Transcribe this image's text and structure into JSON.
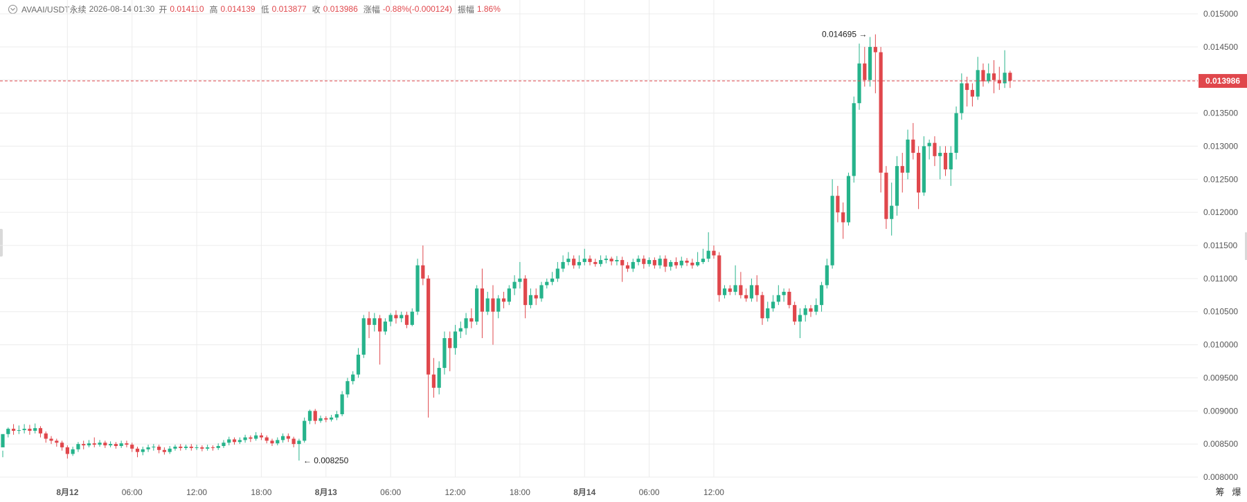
{
  "header": {
    "symbol": "AVAAI/USDT永续",
    "datetime": "2026-08-14 01:30",
    "open_label": "开",
    "open": "0.014110",
    "high_label": "高",
    "high": "0.014139",
    "low_label": "低",
    "low": "0.013877",
    "close_label": "收",
    "close": "0.013986",
    "change_label": "涨幅",
    "change": "-0.88%(-0.000124)",
    "amplitude_label": "振幅",
    "amplitude": "1.86%"
  },
  "colors": {
    "up": "#26b38b",
    "down": "#e0474c",
    "grid": "#ececec",
    "text": "#555555"
  },
  "chart_data": {
    "type": "candlestick",
    "ylim": [
      0.008,
      0.015
    ],
    "y_ticks": [
      "0.008000",
      "0.008500",
      "0.009000",
      "0.009500",
      "0.010000",
      "0.010500",
      "0.011000",
      "0.011500",
      "0.012000",
      "0.012500",
      "0.013000",
      "0.013500",
      "0.014000",
      "0.014500",
      "0.015000"
    ],
    "x_ticks": [
      {
        "label": "8月12",
        "hour": 6,
        "bold": true
      },
      {
        "label": "06:00",
        "hour": 12,
        "bold": false
      },
      {
        "label": "12:00",
        "hour": 18,
        "bold": false
      },
      {
        "label": "18:00",
        "hour": 24,
        "bold": false
      },
      {
        "label": "8月13",
        "hour": 30,
        "bold": true
      },
      {
        "label": "06:00",
        "hour": 36,
        "bold": false
      },
      {
        "label": "12:00",
        "hour": 42,
        "bold": false
      },
      {
        "label": "18:00",
        "hour": 48,
        "bold": false
      },
      {
        "label": "8月14",
        "hour": 54,
        "bold": true
      },
      {
        "label": "06:00",
        "hour": 60,
        "bold": false
      },
      {
        "label": "12:00",
        "hour": 66,
        "bold": false
      }
    ],
    "current_price": "0.013986",
    "max_label": "0.014695",
    "min_label": "0.008250",
    "corner_labels": [
      "筹",
      "爆"
    ],
    "candles": [
      [
        0.00845,
        0.00865,
        0.0084,
        0.0083
      ],
      [
        0.00865,
        0.00873,
        0.00875,
        0.0086
      ],
      [
        0.00873,
        0.0087,
        0.0088,
        0.00864
      ],
      [
        0.0087,
        0.00871,
        0.00878,
        0.00865
      ],
      [
        0.00871,
        0.00873,
        0.0088,
        0.00866
      ],
      [
        0.00873,
        0.0087,
        0.00879,
        0.00864
      ],
      [
        0.0087,
        0.00874,
        0.00881,
        0.00866
      ],
      [
        0.00874,
        0.00866,
        0.00877,
        0.0086
      ],
      [
        0.00866,
        0.00858,
        0.00869,
        0.00852
      ],
      [
        0.00858,
        0.00855,
        0.00862,
        0.0085
      ],
      [
        0.00855,
        0.00852,
        0.00858,
        0.00846
      ],
      [
        0.00852,
        0.00845,
        0.00855,
        0.0084
      ],
      [
        0.00845,
        0.00835,
        0.00848,
        0.00828
      ],
      [
        0.00835,
        0.00842,
        0.00846,
        0.00832
      ],
      [
        0.00842,
        0.0085,
        0.00853,
        0.00838
      ],
      [
        0.0085,
        0.00848,
        0.00855,
        0.00842
      ],
      [
        0.00848,
        0.00851,
        0.00856,
        0.00845
      ],
      [
        0.00851,
        0.00849,
        0.0086,
        0.00845
      ],
      [
        0.00849,
        0.00852,
        0.00856,
        0.00846
      ],
      [
        0.00852,
        0.00848,
        0.00855,
        0.00844
      ],
      [
        0.00848,
        0.0085,
        0.00854,
        0.00845
      ],
      [
        0.0085,
        0.00847,
        0.00853,
        0.00843
      ],
      [
        0.00847,
        0.00851,
        0.00855,
        0.00844
      ],
      [
        0.00851,
        0.00849,
        0.00855,
        0.00845
      ],
      [
        0.00849,
        0.00843,
        0.00852,
        0.00838
      ],
      [
        0.00843,
        0.00838,
        0.00846,
        0.0083
      ],
      [
        0.00838,
        0.00842,
        0.00846,
        0.00833
      ],
      [
        0.00842,
        0.00845,
        0.00849,
        0.00838
      ],
      [
        0.00845,
        0.00846,
        0.0085,
        0.0084
      ],
      [
        0.00846,
        0.00841,
        0.00849,
        0.00836
      ],
      [
        0.00841,
        0.00838,
        0.00845,
        0.00834
      ],
      [
        0.00838,
        0.00843,
        0.00847,
        0.00835
      ],
      [
        0.00843,
        0.00846,
        0.00849,
        0.0084
      ],
      [
        0.00846,
        0.00844,
        0.0085,
        0.0084
      ],
      [
        0.00844,
        0.00846,
        0.00849,
        0.00841
      ],
      [
        0.00846,
        0.00844,
        0.0085,
        0.0084
      ],
      [
        0.00844,
        0.00845,
        0.00849,
        0.00841
      ],
      [
        0.00845,
        0.00843,
        0.00848,
        0.00839
      ],
      [
        0.00843,
        0.00845,
        0.00849,
        0.0084
      ],
      [
        0.00845,
        0.00844,
        0.00848,
        0.0084
      ],
      [
        0.00844,
        0.00847,
        0.00851,
        0.00841
      ],
      [
        0.00847,
        0.00852,
        0.00856,
        0.00844
      ],
      [
        0.00852,
        0.00857,
        0.00861,
        0.00848
      ],
      [
        0.00857,
        0.00853,
        0.0086,
        0.00849
      ],
      [
        0.00853,
        0.00856,
        0.0086,
        0.0085
      ],
      [
        0.00856,
        0.0086,
        0.00864,
        0.00852
      ],
      [
        0.0086,
        0.00858,
        0.00863,
        0.00853
      ],
      [
        0.00858,
        0.00863,
        0.00868,
        0.00855
      ],
      [
        0.00863,
        0.0086,
        0.00867,
        0.00856
      ],
      [
        0.0086,
        0.00855,
        0.00863,
        0.00851
      ],
      [
        0.00855,
        0.00851,
        0.00858,
        0.00847
      ],
      [
        0.00851,
        0.00856,
        0.0086,
        0.00848
      ],
      [
        0.00856,
        0.00862,
        0.00866,
        0.00852
      ],
      [
        0.00862,
        0.00858,
        0.00866,
        0.00853
      ],
      [
        0.00858,
        0.0085,
        0.00861,
        0.00845
      ],
      [
        0.0085,
        0.00855,
        0.00858,
        0.00825
      ],
      [
        0.00855,
        0.00885,
        0.0089,
        0.00852
      ],
      [
        0.00885,
        0.009,
        0.00902,
        0.0088
      ],
      [
        0.009,
        0.00885,
        0.00903,
        0.0088
      ],
      [
        0.00885,
        0.00889,
        0.00893,
        0.00882
      ],
      [
        0.00889,
        0.00887,
        0.00892,
        0.00883
      ],
      [
        0.00887,
        0.0089,
        0.00894,
        0.00884
      ],
      [
        0.0089,
        0.00895,
        0.009,
        0.00886
      ],
      [
        0.00895,
        0.00925,
        0.0093,
        0.00892
      ],
      [
        0.00925,
        0.00945,
        0.0095,
        0.0092
      ],
      [
        0.00945,
        0.00955,
        0.0096,
        0.0094
      ],
      [
        0.00955,
        0.00985,
        0.00995,
        0.0095
      ],
      [
        0.00985,
        0.0104,
        0.01045,
        0.0098
      ],
      [
        0.0104,
        0.0103,
        0.0105,
        0.0101
      ],
      [
        0.0103,
        0.0104,
        0.01048,
        0.0102
      ],
      [
        0.0104,
        0.0102,
        0.01045,
        0.0097
      ],
      [
        0.0102,
        0.01035,
        0.0104,
        0.01015
      ],
      [
        0.01035,
        0.01045,
        0.01048,
        0.01028
      ],
      [
        0.01045,
        0.0104,
        0.01052,
        0.01032
      ],
      [
        0.0104,
        0.01045,
        0.0105,
        0.01034
      ],
      [
        0.01045,
        0.0103,
        0.0105,
        0.01025
      ],
      [
        0.0103,
        0.0105,
        0.01055,
        0.01028
      ],
      [
        0.0105,
        0.0112,
        0.0113,
        0.01045
      ],
      [
        0.0112,
        0.011,
        0.0115,
        0.0109
      ],
      [
        0.011,
        0.00955,
        0.01105,
        0.0089
      ],
      [
        0.00955,
        0.00935,
        0.0098,
        0.0092
      ],
      [
        0.00935,
        0.00965,
        0.00975,
        0.00925
      ],
      [
        0.00965,
        0.0101,
        0.0102,
        0.00955
      ],
      [
        0.0101,
        0.00995,
        0.0102,
        0.0096
      ],
      [
        0.00995,
        0.0102,
        0.0103,
        0.00985
      ],
      [
        0.0102,
        0.01025,
        0.01035,
        0.0101
      ],
      [
        0.01025,
        0.0104,
        0.01048,
        0.01015
      ],
      [
        0.0104,
        0.01035,
        0.01055,
        0.01025
      ],
      [
        0.01035,
        0.01085,
        0.0109,
        0.0103
      ],
      [
        0.01085,
        0.0105,
        0.01115,
        0.0101
      ],
      [
        0.0105,
        0.0107,
        0.0108,
        0.01045
      ],
      [
        0.0107,
        0.0105,
        0.0109,
        0.01
      ],
      [
        0.0105,
        0.0107,
        0.01075,
        0.0104
      ],
      [
        0.0107,
        0.01065,
        0.0108,
        0.01055
      ],
      [
        0.01065,
        0.01085,
        0.0109,
        0.0106
      ],
      [
        0.01085,
        0.01095,
        0.01105,
        0.01075
      ],
      [
        0.01095,
        0.011,
        0.01125,
        0.01085
      ],
      [
        0.011,
        0.0106,
        0.01105,
        0.0104
      ],
      [
        0.0106,
        0.01075,
        0.01085,
        0.01055
      ],
      [
        0.01075,
        0.0107,
        0.01085,
        0.0106
      ],
      [
        0.0107,
        0.0109,
        0.01095,
        0.01065
      ],
      [
        0.0109,
        0.01095,
        0.011,
        0.01085
      ],
      [
        0.01095,
        0.011,
        0.0111,
        0.0109
      ],
      [
        0.011,
        0.01115,
        0.01125,
        0.01095
      ],
      [
        0.01115,
        0.01125,
        0.01135,
        0.0111
      ],
      [
        0.01125,
        0.0113,
        0.0114,
        0.0112
      ],
      [
        0.0113,
        0.0112,
        0.01135,
        0.01115
      ],
      [
        0.0112,
        0.01125,
        0.01135,
        0.01115
      ],
      [
        0.01125,
        0.0113,
        0.01145,
        0.0112
      ],
      [
        0.0113,
        0.01125,
        0.01135,
        0.0112
      ],
      [
        0.01125,
        0.01122,
        0.0113,
        0.01118
      ],
      [
        0.01122,
        0.01128,
        0.01135,
        0.01118
      ],
      [
        0.01128,
        0.0113,
        0.01135,
        0.01123
      ],
      [
        0.0113,
        0.01126,
        0.01133,
        0.0112
      ],
      [
        0.01126,
        0.01128,
        0.01134,
        0.0112
      ],
      [
        0.01128,
        0.0112,
        0.01133,
        0.01095
      ],
      [
        0.0112,
        0.01115,
        0.01125,
        0.0111
      ],
      [
        0.01115,
        0.01125,
        0.0113,
        0.0111
      ],
      [
        0.01125,
        0.0113,
        0.01135,
        0.0112
      ],
      [
        0.0113,
        0.01122,
        0.01135,
        0.01115
      ],
      [
        0.01122,
        0.01128,
        0.01132,
        0.01118
      ],
      [
        0.01128,
        0.0112,
        0.01132,
        0.01115
      ],
      [
        0.0112,
        0.0113,
        0.01135,
        0.01115
      ],
      [
        0.0113,
        0.01118,
        0.01135,
        0.0111
      ],
      [
        0.01118,
        0.01125,
        0.01128,
        0.01112
      ],
      [
        0.01125,
        0.0112,
        0.01132,
        0.01115
      ],
      [
        0.0112,
        0.01127,
        0.01133,
        0.01116
      ],
      [
        0.01127,
        0.01124,
        0.01131,
        0.01119
      ],
      [
        0.01124,
        0.0112,
        0.0113,
        0.01115
      ],
      [
        0.0112,
        0.01125,
        0.0114,
        0.01118
      ],
      [
        0.01125,
        0.0113,
        0.01145,
        0.01122
      ],
      [
        0.0113,
        0.01142,
        0.0117,
        0.01125
      ],
      [
        0.01142,
        0.01135,
        0.0115,
        0.0113
      ],
      [
        0.01135,
        0.01075,
        0.0114,
        0.01065
      ],
      [
        0.01075,
        0.01085,
        0.0109,
        0.0107
      ],
      [
        0.01085,
        0.0108,
        0.0109,
        0.01075
      ],
      [
        0.0108,
        0.0109,
        0.0112,
        0.01075
      ],
      [
        0.0109,
        0.01075,
        0.0111,
        0.0107
      ],
      [
        0.01075,
        0.0107,
        0.01085,
        0.01065
      ],
      [
        0.0107,
        0.0109,
        0.011,
        0.01065
      ],
      [
        0.0109,
        0.01075,
        0.01105,
        0.01065
      ],
      [
        0.01075,
        0.0104,
        0.0108,
        0.0103
      ],
      [
        0.0104,
        0.01055,
        0.01065,
        0.01035
      ],
      [
        0.01055,
        0.01065,
        0.01075,
        0.0105
      ],
      [
        0.01065,
        0.01075,
        0.0109,
        0.0106
      ],
      [
        0.01075,
        0.0108,
        0.01085,
        0.01065
      ],
      [
        0.0108,
        0.0106,
        0.01085,
        0.01055
      ],
      [
        0.0106,
        0.01035,
        0.01065,
        0.0103
      ],
      [
        0.01035,
        0.01045,
        0.01055,
        0.0101
      ],
      [
        0.01045,
        0.01055,
        0.0106,
        0.01035
      ],
      [
        0.01055,
        0.0105,
        0.0106,
        0.01042
      ],
      [
        0.0105,
        0.0106,
        0.0107,
        0.01045
      ],
      [
        0.0106,
        0.0109,
        0.01095,
        0.0105
      ],
      [
        0.0109,
        0.0112,
        0.0113,
        0.01085
      ],
      [
        0.0112,
        0.01225,
        0.0125,
        0.01115
      ],
      [
        0.01225,
        0.012,
        0.0124,
        0.01185
      ],
      [
        0.012,
        0.01185,
        0.01215,
        0.0116
      ],
      [
        0.01185,
        0.01255,
        0.0126,
        0.0118
      ],
      [
        0.01255,
        0.01365,
        0.01375,
        0.01245
      ],
      [
        0.01365,
        0.01425,
        0.01455,
        0.01355
      ],
      [
        0.01425,
        0.014,
        0.0145,
        0.0139
      ],
      [
        0.014,
        0.0145,
        0.01465,
        0.0139
      ],
      [
        0.0145,
        0.01442,
        0.01469,
        0.0138
      ],
      [
        0.01442,
        0.0126,
        0.0145,
        0.0123
      ],
      [
        0.0126,
        0.0119,
        0.0127,
        0.01175
      ],
      [
        0.0119,
        0.0121,
        0.01245,
        0.01165
      ],
      [
        0.0121,
        0.0127,
        0.01285,
        0.01195
      ],
      [
        0.0127,
        0.0126,
        0.0129,
        0.0123
      ],
      [
        0.0126,
        0.0131,
        0.01325,
        0.0125
      ],
      [
        0.0131,
        0.0129,
        0.01335,
        0.0128
      ],
      [
        0.0129,
        0.0123,
        0.013,
        0.01205
      ],
      [
        0.0123,
        0.013,
        0.01315,
        0.01225
      ],
      [
        0.013,
        0.01305,
        0.0131,
        0.0128
      ],
      [
        0.01305,
        0.01285,
        0.01315,
        0.0127
      ],
      [
        0.01285,
        0.0129,
        0.013,
        0.0125
      ],
      [
        0.0129,
        0.01265,
        0.013,
        0.01255
      ],
      [
        0.01265,
        0.0129,
        0.013,
        0.0124
      ],
      [
        0.0129,
        0.0135,
        0.0136,
        0.0128
      ],
      [
        0.0135,
        0.01395,
        0.0141,
        0.0134
      ],
      [
        0.01395,
        0.01385,
        0.01405,
        0.0136
      ],
      [
        0.01385,
        0.01375,
        0.01395,
        0.0136
      ],
      [
        0.01375,
        0.01415,
        0.01435,
        0.0137
      ],
      [
        0.01415,
        0.01398,
        0.01425,
        0.0139
      ],
      [
        0.01398,
        0.0141,
        0.01425,
        0.01395
      ],
      [
        0.0141,
        0.014,
        0.0143,
        0.0138
      ],
      [
        0.014,
        0.01395,
        0.0142,
        0.01385
      ],
      [
        0.01395,
        0.01411,
        0.01445,
        0.01388
      ],
      [
        0.01411,
        0.01399,
        0.01414,
        0.01388
      ]
    ]
  }
}
